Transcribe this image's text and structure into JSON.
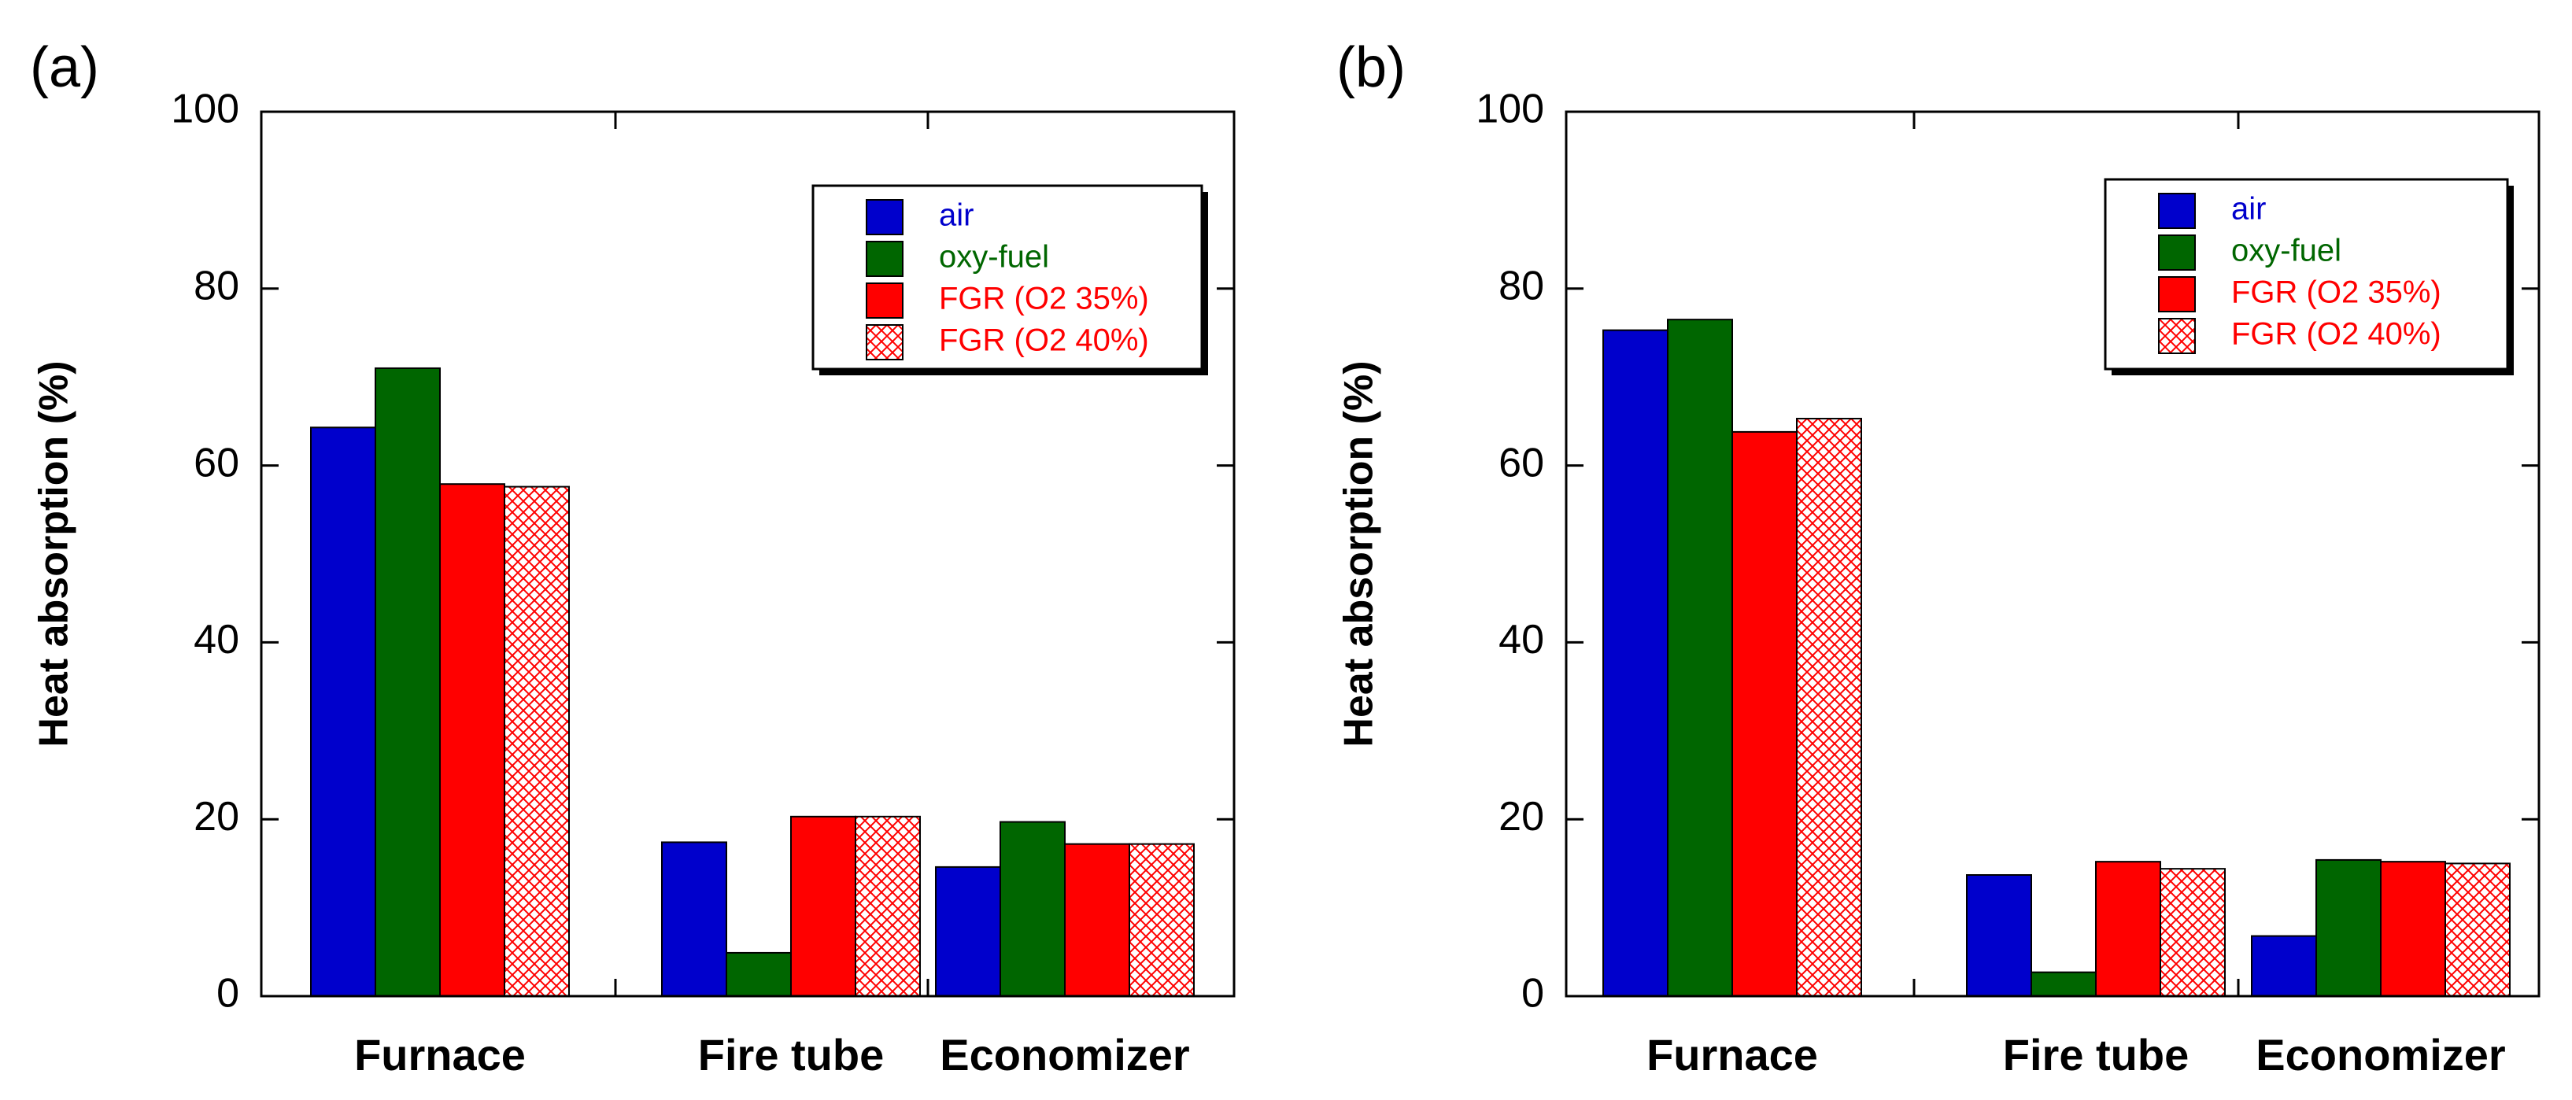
{
  "chart_data": [
    {
      "panel_label": "(a)",
      "type": "bar",
      "ylabel": "Heat absorption (%)",
      "xlabel": "",
      "ylim": [
        0,
        100
      ],
      "yticks": [
        "0",
        "20",
        "40",
        "60",
        "80",
        "100"
      ],
      "categories": [
        "Furnace",
        "Fire tube",
        "Economizer"
      ],
      "series": [
        {
          "name": "air",
          "color": "#0000cc",
          "pattern": "solid",
          "values": [
            64.3,
            17.4,
            14.6
          ]
        },
        {
          "name": "oxy-fuel",
          "color": "#006600",
          "pattern": "solid",
          "values": [
            71.0,
            4.9,
            19.7
          ]
        },
        {
          "name": "FGR (O2 35%)",
          "color": "#ff0000",
          "pattern": "solid",
          "values": [
            57.9,
            20.3,
            17.2
          ]
        },
        {
          "name": "FGR (O2 40%)",
          "color": "#ff0000",
          "pattern": "crosshatch",
          "values": [
            57.6,
            20.3,
            17.2
          ]
        }
      ],
      "legend_position": "top-right",
      "grid": false
    },
    {
      "panel_label": "(b)",
      "type": "bar",
      "ylabel": "Heat absorption (%)",
      "xlabel": "",
      "ylim": [
        0,
        100
      ],
      "yticks": [
        "0",
        "20",
        "40",
        "60",
        "80",
        "100"
      ],
      "categories": [
        "Furnace",
        "Fire tube",
        "Economizer"
      ],
      "series": [
        {
          "name": "air",
          "color": "#0000cc",
          "pattern": "solid",
          "values": [
            75.3,
            13.7,
            6.8
          ]
        },
        {
          "name": "oxy-fuel",
          "color": "#006600",
          "pattern": "solid",
          "values": [
            76.5,
            2.7,
            15.4
          ]
        },
        {
          "name": "FGR (O2 35%)",
          "color": "#ff0000",
          "pattern": "solid",
          "values": [
            63.8,
            15.2,
            15.2
          ]
        },
        {
          "name": "FGR (O2 40%)",
          "color": "#ff0000",
          "pattern": "crosshatch",
          "values": [
            65.3,
            14.4,
            15.0
          ]
        }
      ],
      "legend_position": "top-right",
      "grid": false
    }
  ]
}
